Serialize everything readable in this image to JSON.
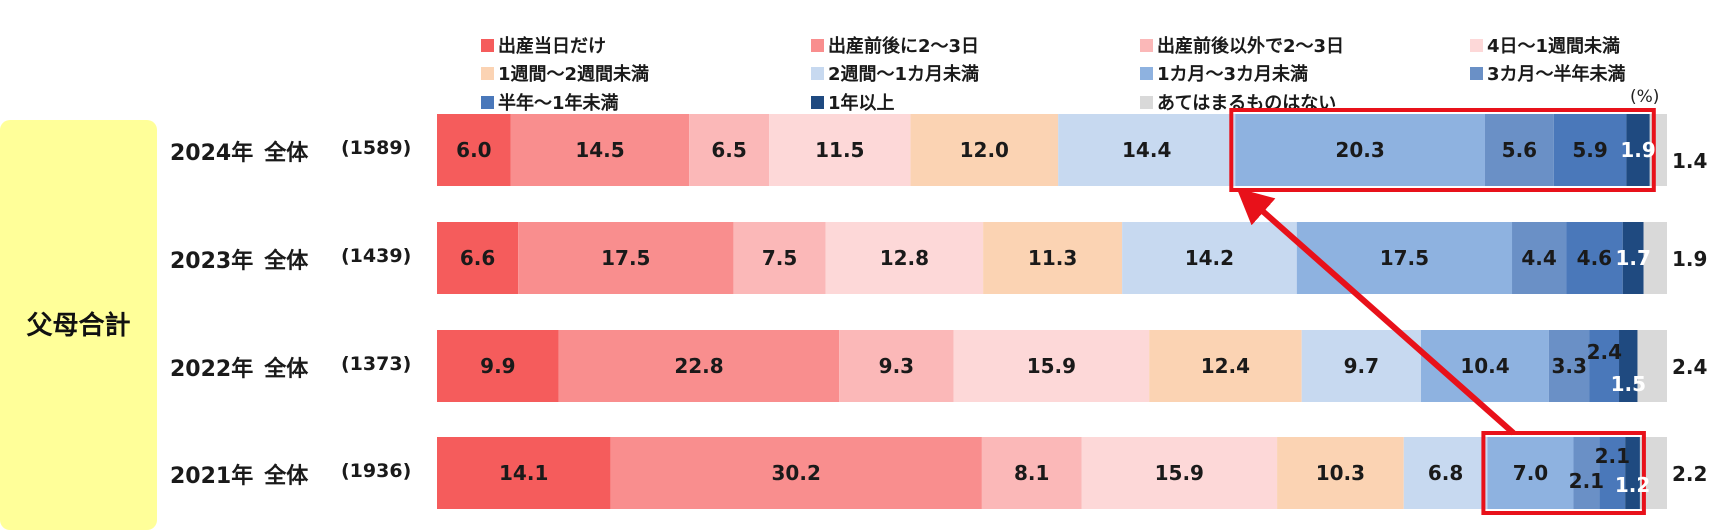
{
  "chart_data": {
    "type": "bar",
    "orientation": "horizontal",
    "stacked": true,
    "group_label": "父母合計",
    "unit_label": "(%)",
    "categories": [
      {
        "label": "出産当日だけ",
        "color": "#f55c5c"
      },
      {
        "label": "出産前後に2～3日",
        "color": "#f98e8e"
      },
      {
        "label": "出産前後以外で2～3日",
        "color": "#fbb8b8"
      },
      {
        "label": "4日～1週間未満",
        "color": "#fdd8d8"
      },
      {
        "label": "1週間～2週間未満",
        "color": "#fbd3b3"
      },
      {
        "label": "2週間～1カ月未満",
        "color": "#c7d9f0"
      },
      {
        "label": "1カ月～3カ月未満",
        "color": "#8eb2e0"
      },
      {
        "label": "3カ月～半年未満",
        "color": "#6a90c6"
      },
      {
        "label": "半年～1年未満",
        "color": "#4a78ba"
      },
      {
        "label": "1年以上",
        "color": "#1f4a80"
      },
      {
        "label": "あてはまるものはない",
        "color": "#d9d9d9"
      }
    ],
    "rows": [
      {
        "year": "2024年",
        "group": "全体",
        "n": "(1589)",
        "values": [
          6.0,
          14.5,
          6.5,
          11.5,
          12.0,
          14.4,
          20.3,
          5.6,
          5.9,
          1.9,
          1.4
        ],
        "labels": [
          "6.0",
          "14.5",
          "6.5",
          "11.5",
          "12.0",
          "14.4",
          "20.3",
          "5.6",
          "5.9",
          "1.9",
          "1.4"
        ]
      },
      {
        "year": "2023年",
        "group": "全体",
        "n": "(1439)",
        "values": [
          6.6,
          17.5,
          7.5,
          12.8,
          11.3,
          14.2,
          17.5,
          4.4,
          4.6,
          1.7,
          1.9
        ],
        "labels": [
          "6.6",
          "17.5",
          "7.5",
          "12.8",
          "11.3",
          "14.2",
          "17.5",
          "4.4",
          "4.6",
          "1.7",
          "1.9"
        ]
      },
      {
        "year": "2022年",
        "group": "全体",
        "n": "(1373)",
        "values": [
          9.9,
          22.8,
          9.3,
          15.9,
          12.4,
          9.7,
          10.4,
          3.3,
          2.4,
          1.5,
          2.4
        ],
        "labels": [
          "9.9",
          "22.8",
          "9.3",
          "15.9",
          "12.4",
          "9.7",
          "10.4",
          "3.3",
          "2.4",
          "1.5",
          "2.4"
        ]
      },
      {
        "year": "2021年",
        "group": "全体",
        "n": "(1936)",
        "values": [
          14.1,
          30.2,
          8.1,
          15.9,
          10.3,
          6.8,
          7.0,
          2.1,
          2.1,
          1.2,
          2.2
        ],
        "labels": [
          "14.1",
          "30.2",
          "8.1",
          "15.9",
          "10.3",
          "6.8",
          "7.0",
          "2.1",
          "2.1",
          "1.2",
          "2.2"
        ]
      }
    ],
    "xlim": [
      0,
      100
    ],
    "highlight": {
      "color": "#e8111a",
      "from_category": 6,
      "to_category": 9,
      "rows": [
        "2021年",
        "2024年"
      ]
    }
  }
}
